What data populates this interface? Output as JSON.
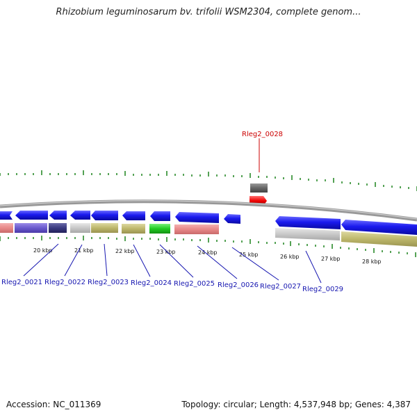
{
  "title": "Rhizobium leguminosarum bv. trifolii WSM2304, complete genom...",
  "footer": {
    "accession": "Accession: NC_011369",
    "topology": "Topology: circular; Length: 4,537,948 bp; Genes: 4,387"
  },
  "kbp_labels": [
    "20 kbp",
    "21 kbp",
    "22 kbp",
    "23 kbp",
    "24 kbp",
    "25 kbp",
    "26 kbp",
    "27 kbp",
    "28 kbp"
  ],
  "genes": [
    "Rleg2_0021",
    "Rleg2_0022",
    "Rleg2_0023",
    "Rleg2_0024",
    "Rleg2_0025",
    "Rleg2_0026",
    "Rleg2_0027",
    "Rleg2_0029"
  ],
  "highlighted_gene": "Rleg2_0028",
  "colors": {
    "gene_arrow": "#1a1aee",
    "highlight": "#ee0000",
    "tick": "#2a8a2a",
    "backbone": "#888888",
    "label_blue": "#1515b0",
    "label_red": "#cc0000"
  }
}
